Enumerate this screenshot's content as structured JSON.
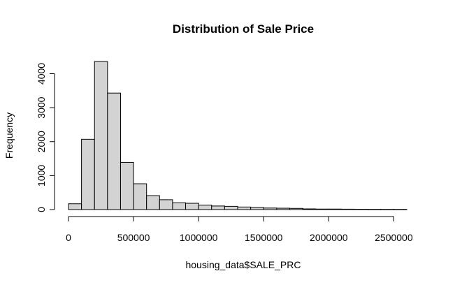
{
  "chart_data": {
    "type": "bar",
    "title": "Distribution of Sale Price",
    "xlabel": "housing_data$SALE_PRC",
    "ylabel": "Frequency",
    "bin_width": 100000,
    "bin_starts": [
      0,
      100000,
      200000,
      300000,
      400000,
      500000,
      600000,
      700000,
      800000,
      900000,
      1000000,
      1100000,
      1200000,
      1300000,
      1400000,
      1500000,
      1600000,
      1700000,
      1800000,
      1900000,
      2000000,
      2100000,
      2200000,
      2300000,
      2400000,
      2500000
    ],
    "values": [
      170,
      2070,
      4360,
      3430,
      1390,
      760,
      410,
      290,
      200,
      185,
      130,
      105,
      95,
      75,
      60,
      45,
      40,
      35,
      20,
      15,
      15,
      12,
      10,
      8,
      6,
      5
    ],
    "xlim": [
      0,
      2600000
    ],
    "ylim": [
      0,
      4360
    ],
    "x_ticks": [
      0,
      500000,
      1000000,
      1500000,
      2000000,
      2500000
    ],
    "x_tick_labels": [
      "0",
      "500000",
      "1000000",
      "1500000",
      "2000000",
      "2500000"
    ],
    "y_ticks": [
      0,
      1000,
      2000,
      3000,
      4000
    ],
    "y_tick_labels": [
      "0",
      "1000",
      "2000",
      "3000",
      "4000"
    ],
    "bar_color": "#d3d3d3",
    "grid": false
  }
}
